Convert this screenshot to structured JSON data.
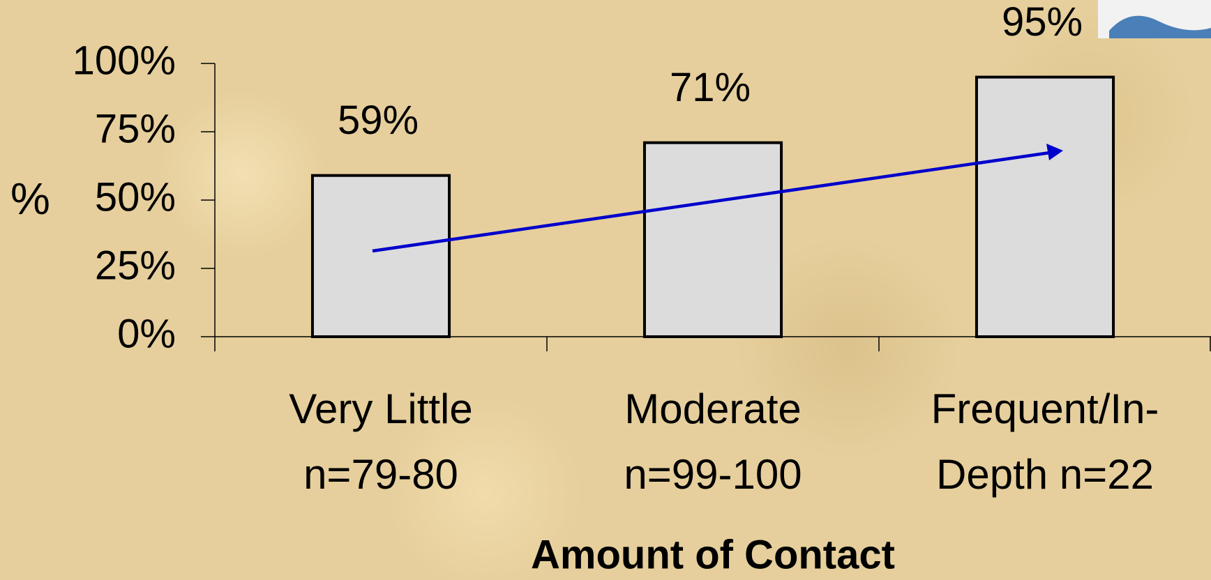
{
  "chart_data": {
    "type": "bar",
    "y_label": "%",
    "x_label": "Amount of Contact",
    "categories": [
      "Very Little n=79-80",
      "Moderate n=99-100",
      "Frequent/In-Depth n=22"
    ],
    "values": [
      59,
      71,
      95
    ],
    "value_labels": [
      "59%",
      "71%",
      "95%"
    ],
    "color": "#dcdcdc",
    "ylim": [
      0,
      100
    ],
    "yticks": [
      {
        "value": 0,
        "label": "0%"
      },
      {
        "value": 25,
        "label": "25%"
      },
      {
        "value": 50,
        "label": "50%"
      },
      {
        "value": 75,
        "label": "75%"
      },
      {
        "value": 100,
        "label": "100%"
      }
    ],
    "grid": false
  }
}
